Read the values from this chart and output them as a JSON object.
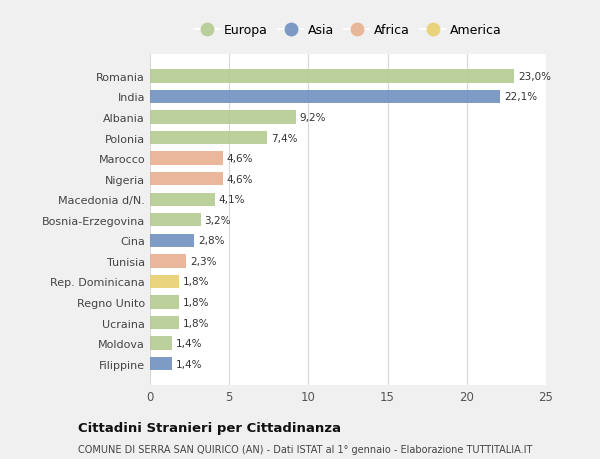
{
  "countries": [
    "Romania",
    "India",
    "Albania",
    "Polonia",
    "Marocco",
    "Nigeria",
    "Macedonia d/N.",
    "Bosnia-Erzegovina",
    "Cina",
    "Tunisia",
    "Rep. Dominicana",
    "Regno Unito",
    "Ucraina",
    "Moldova",
    "Filippine"
  ],
  "values": [
    23.0,
    22.1,
    9.2,
    7.4,
    4.6,
    4.6,
    4.1,
    3.2,
    2.8,
    2.3,
    1.8,
    1.8,
    1.8,
    1.4,
    1.4
  ],
  "labels": [
    "23,0%",
    "22,1%",
    "9,2%",
    "7,4%",
    "4,6%",
    "4,6%",
    "4,1%",
    "3,2%",
    "2,8%",
    "2,3%",
    "1,8%",
    "1,8%",
    "1,8%",
    "1,4%",
    "1,4%"
  ],
  "continents": [
    "Europa",
    "Asia",
    "Europa",
    "Europa",
    "Africa",
    "Africa",
    "Europa",
    "Europa",
    "Asia",
    "Africa",
    "America",
    "Europa",
    "Europa",
    "Europa",
    "Asia"
  ],
  "colors": {
    "Europa": "#b5cb91",
    "Asia": "#7090c0",
    "Africa": "#e8b090",
    "America": "#e8d070"
  },
  "legend_order": [
    "Europa",
    "Asia",
    "Africa",
    "America"
  ],
  "title": "Cittadini Stranieri per Cittadinanza",
  "subtitle": "COMUNE DI SERRA SAN QUIRICO (AN) - Dati ISTAT al 1° gennaio - Elaborazione TUTTITALIA.IT",
  "xlim": [
    0,
    25
  ],
  "xticks": [
    0,
    5,
    10,
    15,
    20,
    25
  ],
  "background_color": "#f0f0f0",
  "bar_background": "#ffffff"
}
